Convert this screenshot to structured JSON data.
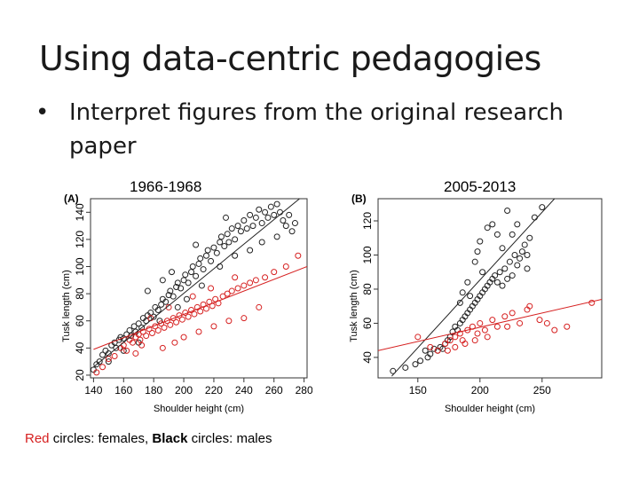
{
  "slide": {
    "title": "Using data-centric pedagogies",
    "bullet": "Interpret figures from the original research paper",
    "bullet_marker": "•"
  },
  "captions": {
    "left": "1966-1968",
    "right": "2005-2013"
  },
  "legend_note": {
    "red_word": "Red",
    "red_rest": " circles: females, ",
    "black_word": "Black",
    "black_rest": " circles: males"
  },
  "colors": {
    "female": "#d62020",
    "male": "#222222"
  },
  "chart_data": [
    {
      "type": "scatter",
      "panel_label": "(A)",
      "xlabel": "Shoulder height (cm)",
      "ylabel": "Tusk length (cm)",
      "xlim": [
        138,
        282
      ],
      "ylim": [
        18,
        150
      ],
      "xticks": [
        140,
        160,
        180,
        200,
        220,
        240,
        260,
        280
      ],
      "yticks": [
        20,
        40,
        60,
        80,
        100,
        120,
        140
      ],
      "grid": false,
      "series": [
        {
          "key": "males",
          "points": [
            [
              140,
              24
            ],
            [
              142,
              28
            ],
            [
              144,
              30
            ],
            [
              146,
              35
            ],
            [
              148,
              38
            ],
            [
              150,
              36
            ],
            [
              152,
              42
            ],
            [
              154,
              44
            ],
            [
              155,
              40
            ],
            [
              157,
              46
            ],
            [
              158,
              48
            ],
            [
              160,
              47
            ],
            [
              162,
              50
            ],
            [
              164,
              53
            ],
            [
              165,
              49
            ],
            [
              167,
              56
            ],
            [
              168,
              52
            ],
            [
              170,
              58
            ],
            [
              172,
              55
            ],
            [
              173,
              62
            ],
            [
              175,
              60
            ],
            [
              176,
              64
            ],
            [
              178,
              66
            ],
            [
              180,
              63
            ],
            [
              181,
              70
            ],
            [
              183,
              68
            ],
            [
              185,
              72
            ],
            [
              186,
              76
            ],
            [
              188,
              74
            ],
            [
              190,
              79
            ],
            [
              191,
              82
            ],
            [
              193,
              78
            ],
            [
              195,
              85
            ],
            [
              196,
              88
            ],
            [
              198,
              84
            ],
            [
              200,
              90
            ],
            [
              201,
              94
            ],
            [
              203,
              88
            ],
            [
              205,
              96
            ],
            [
              206,
              100
            ],
            [
              208,
              93
            ],
            [
              210,
              102
            ],
            [
              211,
              106
            ],
            [
              213,
              98
            ],
            [
              215,
              108
            ],
            [
              216,
              112
            ],
            [
              218,
              104
            ],
            [
              220,
              114
            ],
            [
              222,
              110
            ],
            [
              224,
              118
            ],
            [
              225,
              122
            ],
            [
              227,
              115
            ],
            [
              229,
              124
            ],
            [
              230,
              118
            ],
            [
              232,
              128
            ],
            [
              234,
              120
            ],
            [
              236,
              130
            ],
            [
              238,
              126
            ],
            [
              240,
              134
            ],
            [
              242,
              128
            ],
            [
              244,
              138
            ],
            [
              246,
              130
            ],
            [
              248,
              136
            ],
            [
              250,
              142
            ],
            [
              252,
              132
            ],
            [
              254,
              140
            ],
            [
              256,
              136
            ],
            [
              258,
              144
            ],
            [
              260,
              138
            ],
            [
              262,
              146
            ],
            [
              264,
              140
            ],
            [
              266,
              134
            ],
            [
              268,
              130
            ],
            [
              270,
              138
            ],
            [
              272,
              126
            ],
            [
              274,
              132
            ],
            [
              176,
              82
            ],
            [
              184,
              60
            ],
            [
              192,
              96
            ],
            [
              202,
              76
            ],
            [
              212,
              86
            ],
            [
              224,
              100
            ],
            [
              234,
              108
            ],
            [
              244,
              112
            ],
            [
              196,
              70
            ],
            [
              186,
              90
            ],
            [
              208,
              116
            ],
            [
              228,
              136
            ],
            [
              252,
              118
            ],
            [
              262,
              122
            ],
            [
              170,
              44
            ],
            [
              160,
              38
            ],
            [
              150,
              30
            ]
          ],
          "fit": [
            [
              140,
              26
            ],
            [
              277,
              150
            ]
          ]
        },
        {
          "key": "females",
          "points": [
            [
              142,
              22
            ],
            [
              146,
              26
            ],
            [
              150,
              32
            ],
            [
              154,
              34
            ],
            [
              158,
              40
            ],
            [
              160,
              42
            ],
            [
              162,
              38
            ],
            [
              164,
              46
            ],
            [
              166,
              44
            ],
            [
              168,
              48
            ],
            [
              170,
              50
            ],
            [
              171,
              46
            ],
            [
              173,
              52
            ],
            [
              175,
              49
            ],
            [
              177,
              54
            ],
            [
              179,
              51
            ],
            [
              181,
              56
            ],
            [
              183,
              53
            ],
            [
              185,
              58
            ],
            [
              187,
              55
            ],
            [
              189,
              60
            ],
            [
              191,
              57
            ],
            [
              193,
              62
            ],
            [
              195,
              59
            ],
            [
              197,
              64
            ],
            [
              199,
              61
            ],
            [
              201,
              66
            ],
            [
              203,
              63
            ],
            [
              205,
              68
            ],
            [
              207,
              65
            ],
            [
              209,
              70
            ],
            [
              211,
              67
            ],
            [
              213,
              72
            ],
            [
              215,
              69
            ],
            [
              217,
              74
            ],
            [
              219,
              71
            ],
            [
              221,
              76
            ],
            [
              223,
              73
            ],
            [
              226,
              78
            ],
            [
              229,
              80
            ],
            [
              232,
              82
            ],
            [
              236,
              84
            ],
            [
              240,
              86
            ],
            [
              244,
              88
            ],
            [
              248,
              90
            ],
            [
              254,
              92
            ],
            [
              260,
              96
            ],
            [
              268,
              100
            ],
            [
              276,
              108
            ],
            [
              186,
              40
            ],
            [
              194,
              44
            ],
            [
              200,
              48
            ],
            [
              210,
              52
            ],
            [
              220,
              56
            ],
            [
              230,
              60
            ],
            [
              240,
              62
            ],
            [
              250,
              70
            ],
            [
              178,
              62
            ],
            [
              190,
              70
            ],
            [
              206,
              78
            ],
            [
              218,
              84
            ],
            [
              234,
              92
            ],
            [
              168,
              36
            ],
            [
              172,
              42
            ]
          ],
          "fit": [
            [
              140,
              39
            ],
            [
              282,
              100
            ]
          ]
        }
      ]
    },
    {
      "type": "scatter",
      "panel_label": "(B)",
      "xlabel": "Shoulder height (cm)",
      "ylabel": "Tusk length (cm)",
      "xlim": [
        118,
        298
      ],
      "ylim": [
        28,
        133
      ],
      "xticks": [
        150,
        200,
        250
      ],
      "yticks": [
        40,
        60,
        80,
        100,
        120
      ],
      "grid": false,
      "series": [
        {
          "key": "males",
          "points": [
            [
              130,
              32
            ],
            [
              140,
              34
            ],
            [
              148,
              36
            ],
            [
              152,
              38
            ],
            [
              156,
              44
            ],
            [
              158,
              40
            ],
            [
              160,
              42
            ],
            [
              163,
              45
            ],
            [
              166,
              44
            ],
            [
              168,
              46
            ],
            [
              170,
              45
            ],
            [
              172,
              48
            ],
            [
              174,
              50
            ],
            [
              176,
              52
            ],
            [
              178,
              55
            ],
            [
              180,
              58
            ],
            [
              182,
              56
            ],
            [
              184,
              60
            ],
            [
              186,
              62
            ],
            [
              188,
              64
            ],
            [
              190,
              66
            ],
            [
              192,
              68
            ],
            [
              194,
              70
            ],
            [
              196,
              72
            ],
            [
              198,
              74
            ],
            [
              200,
              76
            ],
            [
              202,
              78
            ],
            [
              204,
              80
            ],
            [
              206,
              82
            ],
            [
              208,
              84
            ],
            [
              210,
              86
            ],
            [
              212,
              88
            ],
            [
              214,
              84
            ],
            [
              216,
              90
            ],
            [
              218,
              82
            ],
            [
              220,
              92
            ],
            [
              222,
              86
            ],
            [
              224,
              96
            ],
            [
              226,
              88
            ],
            [
              228,
              100
            ],
            [
              230,
              94
            ],
            [
              232,
              98
            ],
            [
              234,
              102
            ],
            [
              236,
              106
            ],
            [
              238,
              100
            ],
            [
              240,
              110
            ],
            [
              184,
              72
            ],
            [
              190,
              84
            ],
            [
              196,
              96
            ],
            [
              198,
              102
            ],
            [
              200,
              108
            ],
            [
              206,
              116
            ],
            [
              210,
              118
            ],
            [
              214,
              112
            ],
            [
              222,
              126
            ],
            [
              230,
              118
            ],
            [
              244,
              122
            ],
            [
              250,
              128
            ],
            [
              186,
              78
            ],
            [
              192,
              76
            ],
            [
              202,
              90
            ],
            [
              218,
              104
            ],
            [
              226,
              112
            ],
            [
              238,
              92
            ]
          ],
          "fit": [
            [
              129,
              29
            ],
            [
              260,
              133
            ]
          ]
        },
        {
          "key": "females",
          "points": [
            [
              150,
              52
            ],
            [
              160,
              46
            ],
            [
              166,
              44
            ],
            [
              172,
              48
            ],
            [
              176,
              50
            ],
            [
              180,
              52
            ],
            [
              184,
              54
            ],
            [
              186,
              50
            ],
            [
              188,
              48
            ],
            [
              190,
              56
            ],
            [
              194,
              58
            ],
            [
              198,
              54
            ],
            [
              200,
              60
            ],
            [
              204,
              56
            ],
            [
              210,
              62
            ],
            [
              214,
              58
            ],
            [
              220,
              64
            ],
            [
              226,
              66
            ],
            [
              232,
              60
            ],
            [
              238,
              68
            ],
            [
              248,
              62
            ],
            [
              254,
              60
            ],
            [
              260,
              56
            ],
            [
              270,
              58
            ],
            [
              180,
              46
            ],
            [
              196,
              50
            ],
            [
              222,
              58
            ],
            [
              240,
              70
            ],
            [
              174,
              44
            ],
            [
              206,
              52
            ],
            [
              290,
              72
            ]
          ],
          "fit": [
            [
              118,
              44
            ],
            [
              298,
              74
            ]
          ]
        }
      ]
    }
  ]
}
